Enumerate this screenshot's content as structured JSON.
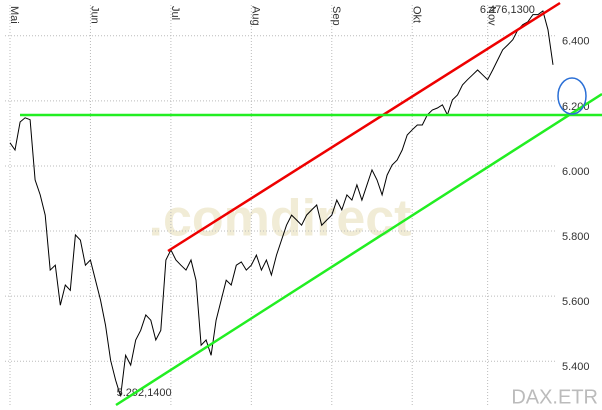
{
  "chart_data": {
    "type": "line",
    "watermark": ".comdirect",
    "source": "DAX.ETR",
    "categories": [
      "Mai",
      null,
      null,
      null,
      null,
      null,
      null,
      null,
      null,
      null,
      null,
      null,
      null,
      null,
      null,
      null,
      "Jun",
      null,
      null,
      null,
      null,
      null,
      null,
      null,
      null,
      null,
      null,
      null,
      null,
      null,
      null,
      null,
      "Jul",
      null,
      null,
      null,
      null,
      null,
      null,
      null,
      null,
      null,
      null,
      null,
      null,
      null,
      null,
      null,
      "Aug",
      null,
      null,
      null,
      null,
      null,
      null,
      null,
      null,
      null,
      null,
      null,
      null,
      null,
      null,
      null,
      "Sep",
      null,
      null,
      null,
      null,
      null,
      null,
      null,
      null,
      null,
      null,
      null,
      null,
      null,
      null,
      null,
      "Okt",
      null,
      null,
      null,
      null,
      null,
      null,
      null,
      null,
      null,
      null,
      null,
      null,
      null,
      null,
      "Nov",
      null,
      null,
      null,
      null,
      null,
      null,
      null,
      null,
      null,
      null,
      null,
      null,
      null
    ],
    "values": [
      6071,
      6049,
      6135,
      6148,
      6142,
      5957,
      5911,
      5849,
      5680,
      5695,
      5572,
      5634,
      5618,
      5788,
      5772,
      5695,
      5711,
      5649,
      5588,
      5511,
      5403,
      5342,
      5292.14,
      5418,
      5388,
      5465,
      5495,
      5542,
      5526,
      5465,
      5495,
      5711,
      5742,
      5711,
      5695,
      5680,
      5711,
      5649,
      5449,
      5465,
      5418,
      5526,
      5588,
      5649,
      5634,
      5695,
      5705,
      5680,
      5695,
      5726,
      5680,
      5711,
      5665,
      5726,
      5772,
      5818,
      5849,
      5834,
      5818,
      5849,
      5865,
      5880,
      5818,
      5834,
      5849,
      5895,
      5865,
      5911,
      5895,
      5942,
      5895,
      5942,
      5988,
      5957,
      5911,
      5972,
      6003,
      6018,
      6049,
      6095,
      6111,
      6126,
      6126,
      6157,
      6172,
      6178,
      6188,
      6157,
      6203,
      6218,
      6249,
      6265,
      6280,
      6295,
      6280,
      6265,
      6295,
      6326,
      6357,
      6372,
      6388,
      6418,
      6434,
      6443,
      6465,
      6465,
      6476.13,
      6418,
      6311
    ],
    "value_labels": [
      null,
      null,
      null,
      null,
      null,
      null,
      null,
      null,
      null,
      null,
      null,
      null,
      null,
      null,
      null,
      null,
      null,
      null,
      null,
      null,
      null,
      null,
      "5.292,1400",
      null,
      null,
      null,
      null,
      null,
      null,
      null,
      null,
      null,
      null,
      null,
      null,
      null,
      null,
      null,
      null,
      null,
      null,
      null,
      null,
      null,
      null,
      null,
      null,
      null,
      null,
      null,
      null,
      null,
      null,
      null,
      null,
      null,
      null,
      null,
      null,
      null,
      null,
      null,
      null,
      null,
      null,
      null,
      null,
      null,
      null,
      null,
      null,
      null,
      null,
      null,
      null,
      null,
      null,
      null,
      null,
      null,
      null,
      null,
      null,
      null,
      null,
      null,
      null,
      null,
      null,
      null,
      null,
      null,
      null,
      null,
      null,
      null,
      null,
      null,
      null,
      null,
      null,
      null,
      null,
      null,
      null,
      null,
      "6.476,1300",
      null,
      null
    ],
    "color": "#000000",
    "ylim": [
      5250,
      6510
    ],
    "yticks": [
      {
        "value": 5400,
        "label": "5.400"
      },
      {
        "value": 5600,
        "label": "5.600"
      },
      {
        "value": 5800,
        "label": "5.800"
      },
      {
        "value": 6000,
        "label": "6.000"
      },
      {
        "value": 6200,
        "label": "6.200"
      },
      {
        "value": 6400,
        "label": "6.400"
      }
    ],
    "grid": true
  }
}
